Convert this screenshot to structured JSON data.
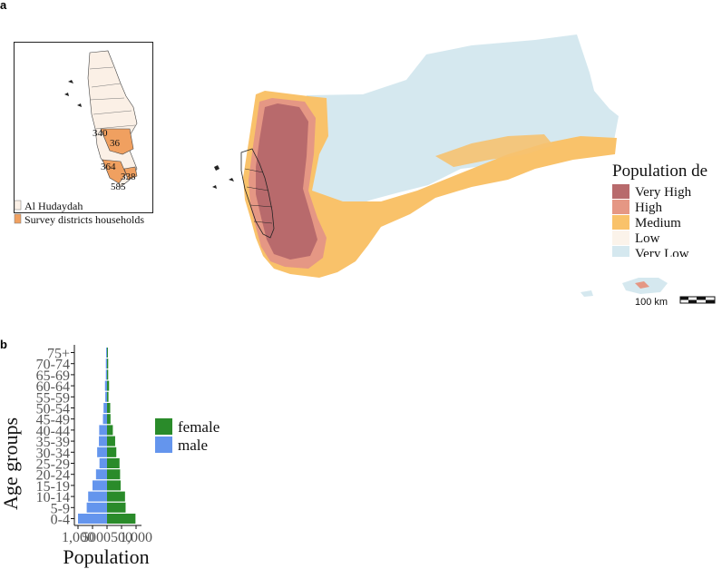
{
  "panel_a": {
    "letter": "a",
    "inset": {
      "district_labels": [
        "340",
        "36",
        "364",
        "338",
        "585"
      ],
      "legend": [
        {
          "label": "Al Hudaydah",
          "color": "#fbf0e6"
        },
        {
          "label": "Survey districts households",
          "color": "#f0a060"
        }
      ]
    },
    "legend": {
      "title": "Population de",
      "items": [
        {
          "label": "Very High",
          "color": "#b86a6c"
        },
        {
          "label": "High",
          "color": "#e59784"
        },
        {
          "label": "Medium",
          "color": "#f9c26a"
        },
        {
          "label": "Low",
          "color": "#fbf3ea"
        },
        {
          "label": "Very Low",
          "color": "#d5e8ef"
        }
      ]
    },
    "scale_bar": {
      "label": "100 km"
    }
  },
  "panel_b": {
    "letter": "b",
    "chart_data": {
      "type": "bar",
      "orientation": "horizontal-pyramid",
      "ylabel": "Age groups",
      "xlabel": "Population",
      "x_tick_labels": [
        "1,000",
        "500",
        "0",
        "500",
        "1,000"
      ],
      "categories": [
        "0-4",
        "5-9",
        "10-14",
        "15-19",
        "20-24",
        "25-29",
        "30-34",
        "35-39",
        "40-44",
        "45-49",
        "50-54",
        "55-59",
        "60-64",
        "65-69",
        "70-74",
        "75+"
      ],
      "series": [
        {
          "name": "female",
          "color": "#2a8b2a",
          "values": [
            980,
            640,
            620,
            470,
            450,
            430,
            320,
            280,
            200,
            120,
            110,
            50,
            70,
            40,
            40,
            30
          ]
        },
        {
          "name": "male",
          "color": "#6495ed",
          "values": [
            1000,
            700,
            650,
            500,
            380,
            260,
            340,
            280,
            270,
            140,
            120,
            60,
            70,
            40,
            40,
            30
          ]
        }
      ],
      "xlim": [
        -1100,
        1100
      ],
      "legend": [
        "female",
        "male"
      ]
    }
  }
}
